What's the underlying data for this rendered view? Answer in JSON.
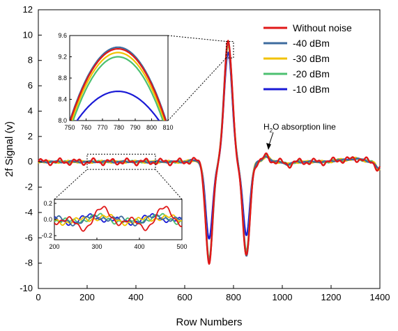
{
  "chart_data": {
    "type": "line",
    "xlabel": "Row Numbers",
    "ylabel": "2f Signal (v)",
    "xlim": [
      0,
      1400
    ],
    "ylim": [
      -10,
      12
    ],
    "xticks": [
      0,
      200,
      400,
      600,
      800,
      1000,
      1200,
      1400
    ],
    "yticks": [
      -10,
      -8,
      -6,
      -4,
      -2,
      0,
      2,
      4,
      6,
      8,
      10,
      12
    ],
    "legend_position": "top-right",
    "annotation": {
      "text": "H2O absorption line",
      "x": 940,
      "y": 0.5
    },
    "series": [
      {
        "name": "Without noise",
        "color": "#e01818",
        "peak": 9.35,
        "min_left": -7.8,
        "min_right": -7.4,
        "noise": 0.18
      },
      {
        "name": "-40 dBm",
        "color": "#3d6b9e",
        "peak": 9.38,
        "min_left": -7.7,
        "min_right": -7.2,
        "noise": 0.05
      },
      {
        "name": "-30 dBm",
        "color": "#f2c200",
        "peak": 9.28,
        "min_left": -7.6,
        "min_right": -7.1,
        "noise": 0.06
      },
      {
        "name": "-20 dBm",
        "color": "#4cc070",
        "peak": 9.2,
        "min_left": -7.4,
        "min_right": -6.9,
        "noise": 0.06
      },
      {
        "name": "-10 dBm",
        "color": "#1a1ad6",
        "peak": 8.55,
        "min_left": -5.9,
        "min_right": -5.6,
        "noise": 0.04
      }
    ],
    "insets": [
      {
        "id": "peak",
        "xlim": [
          750,
          810
        ],
        "ylim": [
          8.0,
          9.6
        ],
        "xticks": [
          750,
          760,
          770,
          780,
          790,
          800,
          810
        ],
        "yticks": [
          8.0,
          8.4,
          8.8,
          9.2,
          9.6
        ]
      },
      {
        "id": "baseline",
        "xlim": [
          200,
          500
        ],
        "ylim": [
          -0.25,
          0.25
        ],
        "xticks": [
          200,
          300,
          400,
          500
        ],
        "yticks": [
          -0.2,
          0.0,
          0.2
        ]
      }
    ]
  }
}
